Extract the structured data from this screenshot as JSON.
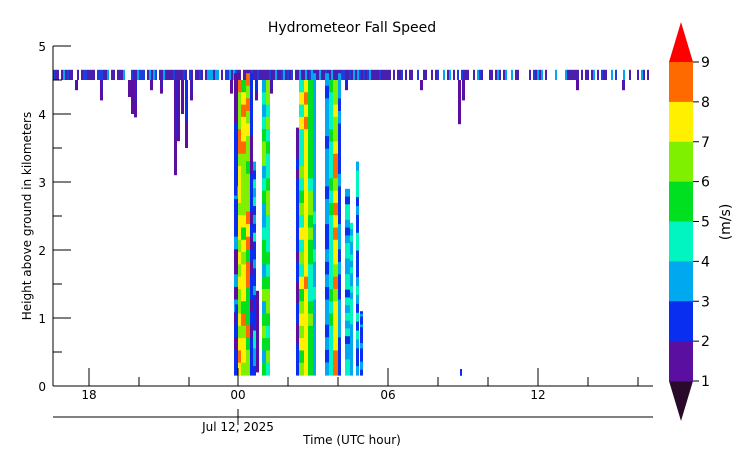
{
  "chart_data": {
    "type": "heatmap",
    "title": "Hydrometeor Fall Speed",
    "ylabel": "Height above ground in kilometers",
    "xlabel": "Time (UTC hour)",
    "date_label": "Jul 12, 2025",
    "ylim": [
      0,
      5
    ],
    "y_ticks": [
      "0",
      "1",
      "2",
      "3",
      "4",
      "5"
    ],
    "x_ticks": [
      "18",
      "00",
      "06",
      "12"
    ],
    "colorbar": {
      "label": "(m/s)",
      "ticks": [
        "1",
        "2",
        "3",
        "4",
        "5",
        "6",
        "7",
        "8",
        "9"
      ],
      "colors": [
        "#5a0fa0",
        "#0a2ef0",
        "#00a8f0",
        "#00f5c0",
        "#00e020",
        "#7ef000",
        "#fff000",
        "#ff6a00"
      ],
      "under_color": "#2a0a2a",
      "over_color": "#ff0000"
    },
    "colors": {
      "cloud_top": "#4a1fb0",
      "cloud_top_alt": "#1a40e0"
    },
    "echo_columns": [
      {
        "time": "Jul 11 22:45",
        "top_km": 4.6,
        "speed_m_s": 2
      },
      {
        "time": "Jul 11 23:45",
        "top_km": 4.6,
        "speed_m_s": 1
      },
      {
        "time": "Jul 12 00:30",
        "top_km": 4.6,
        "speed_m_s": 6
      },
      {
        "time": "Jul 12 01:15",
        "top_km": 4.6,
        "speed_m_s": 4
      },
      {
        "time": "Jul 12 03:00",
        "top_km": 4.6,
        "speed_m_s": 6
      },
      {
        "time": "Jul 12 04:00",
        "top_km": 4.6,
        "speed_m_s": 5
      },
      {
        "time": "Jul 12 04:45",
        "top_km": 3.3,
        "speed_m_s": 3
      }
    ]
  }
}
